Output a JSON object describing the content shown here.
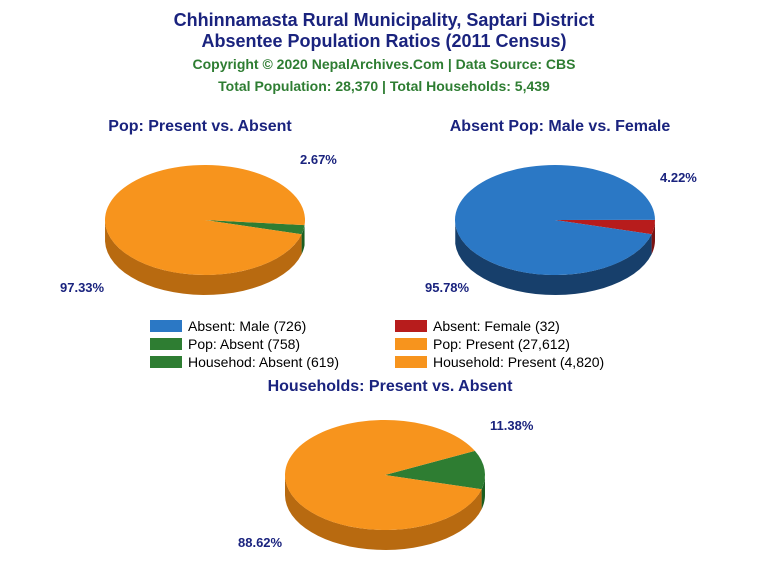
{
  "title_line1": "Chhinnamasta Rural Municipality, Saptari District",
  "title_line2": "Absentee Population Ratios (2011 Census)",
  "title_color": "#1a237e",
  "title_fontsize": 18,
  "copyright": "Copyright © 2020 NepalArchives.Com | Data Source: CBS",
  "copyright_color": "#2e7d32",
  "copyright_fontsize": 14,
  "totals": "Total Population: 28,370 | Total Households: 5,439",
  "totals_color": "#2e7d32",
  "totals_fontsize": 14,
  "label_color": "#1a237e",
  "chart_title_fontsize": 16,
  "pie_label_fontsize": 13,
  "pie1": {
    "title": "Pop: Present vs. Absent",
    "slices": [
      {
        "pct": 97.33,
        "color": "#f7941d",
        "side": "#b86a10",
        "label": "97.33%"
      },
      {
        "pct": 2.67,
        "color": "#2e7d32",
        "side": "#1b5e20",
        "label": "2.67%"
      }
    ]
  },
  "pie2": {
    "title": "Absent Pop: Male vs. Female",
    "slices": [
      {
        "pct": 95.78,
        "color": "#2b78c5",
        "side": "#173f6b",
        "label": "95.78%"
      },
      {
        "pct": 4.22,
        "color": "#b71c1c",
        "side": "#7a1313",
        "label": "4.22%"
      }
    ]
  },
  "pie3": {
    "title": "Households: Present vs. Absent",
    "slices": [
      {
        "pct": 88.62,
        "color": "#f7941d",
        "side": "#b86a10",
        "label": "88.62%"
      },
      {
        "pct": 11.38,
        "color": "#2e7d32",
        "side": "#1b5e20",
        "label": "11.38%"
      }
    ]
  },
  "legend": [
    {
      "color": "#2b78c5",
      "text": "Absent: Male (726)"
    },
    {
      "color": "#b71c1c",
      "text": "Absent: Female (32)"
    },
    {
      "color": "#2e7d32",
      "text": "Pop: Absent (758)"
    },
    {
      "color": "#f7941d",
      "text": "Pop: Present (27,612)"
    },
    {
      "color": "#2e7d32",
      "text": "Househod: Absent (619)"
    },
    {
      "color": "#f7941d",
      "text": "Household: Present (4,820)"
    }
  ]
}
